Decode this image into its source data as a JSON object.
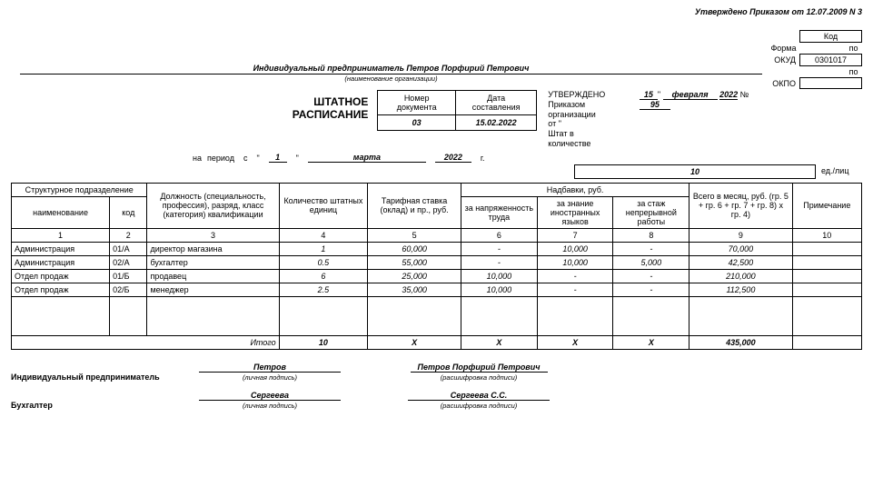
{
  "approval_top": "Утверждено Приказом от 12.07.2009 N 3",
  "codes": {
    "kod_label": "Код",
    "forma_label": "Форма",
    "okud_label": "ОКУД",
    "okud": "0301017",
    "po_label": "по",
    "okpo_label": "ОКПО",
    "okpo": ""
  },
  "org_name": "Индивидуальный предприниматель Петров Порфирий Петрович",
  "org_sub": "(наименование организации)",
  "title_line1": "ШТАТНОЕ",
  "title_line2": "РАСПИСАНИЕ",
  "doc_number_label": "Номер документа",
  "doc_number": "03",
  "doc_date_label": "Дата составления",
  "doc_date": "15.02.2022",
  "approved": {
    "l1": "УТВЕРЖДЕНО",
    "l2": "Приказом",
    "l3": "организации",
    "l4": "от \"",
    "l5": "Штат в",
    "l6": "количестве"
  },
  "date_right": {
    "day": "15",
    "month": "февраля",
    "year": "2022",
    "no_label": "№",
    "no": "95"
  },
  "period": {
    "na_label": "на",
    "period_label": "период",
    "s_label": "с",
    "day": "1",
    "month": "марта",
    "year": "2022",
    "year_suffix": "г."
  },
  "units": {
    "value": "10",
    "suffix": "ед./лиц"
  },
  "columns": {
    "c1_top": "Структурное подразделение",
    "c1a": "наименование",
    "c1b": "код",
    "c2": "Должность (специальность, профессия), разряд, класс (категория) квалификации",
    "c3": "Количество штатных единиц",
    "c4": "Тарифная ставка (оклад) и пр., руб.",
    "c5_top": "Надбавки, руб.",
    "c5a": "за напряженность труда",
    "c5b": "за знание иностранных языков",
    "c5c": "за стаж непрерывной работы",
    "c6": "Всего в месяц, руб. (гр. 5 + гр. 6 + гр. 7 + гр. 8) x гр. 4)",
    "c7": "Примечание"
  },
  "col_numbers": [
    "1",
    "2",
    "3",
    "4",
    "5",
    "6",
    "7",
    "8",
    "9",
    "10"
  ],
  "rows": [
    {
      "dep": "Администрация",
      "code": "01/А",
      "pos": "директор магазина",
      "qty": "1",
      "rate": "60,000",
      "a1": "-",
      "a2": "10,000",
      "a3": "-",
      "total": "70,000",
      "note": ""
    },
    {
      "dep": "Администрация",
      "code": "02/А",
      "pos": "бухгалтер",
      "qty": "0.5",
      "rate": "55,000",
      "a1": "-",
      "a2": "10,000",
      "a3": "5,000",
      "total": "42,500",
      "note": ""
    },
    {
      "dep": "Отдел продаж",
      "code": "01/Б",
      "pos": "продавец",
      "qty": "6",
      "rate": "25,000",
      "a1": "10,000",
      "a2": "-",
      "a3": "-",
      "total": "210,000",
      "note": ""
    },
    {
      "dep": "Отдел продаж",
      "code": "02/Б",
      "pos": "менеджер",
      "qty": "2.5",
      "rate": "35,000",
      "a1": "10,000",
      "a2": "-",
      "a3": "-",
      "total": "112,500",
      "note": ""
    }
  ],
  "totals": {
    "label": "Итого",
    "qty": "10",
    "rate": "X",
    "a1": "X",
    "a2": "X",
    "a3": "X",
    "total": "435,000",
    "note": ""
  },
  "signatures": {
    "role1": "Индивидуальный предприниматель",
    "sign1": "Петров",
    "sign1_sub": "(личная подпись)",
    "name1": "Петров Порфирий Петрович",
    "name1_sub": "(расшифровка подписи)",
    "role2": "Бухгалтер",
    "sign2": "Сергеева",
    "sign2_sub": "(личная подпись)",
    "name2": "Сергеева С.С.",
    "name2_sub": "(расшифровка подписи)"
  }
}
